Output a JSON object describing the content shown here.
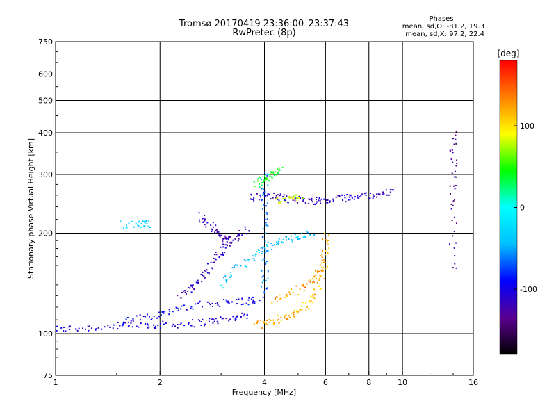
{
  "header": {
    "title": "Tromsø 20170419 23:36:00–23:37:43",
    "subtitle": "RwPretec (8p)"
  },
  "stats": {
    "title": "Phases",
    "o_line": "mean, sd,O: -81.2, 19.3",
    "x_line": "mean, sd,X:  97.2, 22.4"
  },
  "chart_data": {
    "type": "scatter",
    "xlabel": "Frequency [MHz]",
    "ylabel": "Stationary phase Virtual Height [km]",
    "x_scale": "log",
    "y_scale": "log",
    "xlim": [
      1,
      16
    ],
    "ylim": [
      75,
      750
    ],
    "x_ticks": [
      1,
      2,
      4,
      6,
      8,
      10,
      16
    ],
    "x_tick_labels": [
      "1",
      "2",
      "4",
      "6",
      "8",
      "10",
      "16"
    ],
    "x_grid": [
      2,
      4,
      6,
      8,
      10
    ],
    "y_ticks": [
      75,
      100,
      200,
      300,
      400,
      500,
      600,
      750
    ],
    "y_tick_labels": [
      "75",
      "100",
      "200",
      "300",
      "400",
      "500",
      "600",
      "750"
    ],
    "y_grid": [
      100,
      200,
      300,
      400,
      500,
      600
    ],
    "grid": true,
    "colorbar": {
      "label": "[deg]",
      "range": [
        -180,
        180
      ],
      "ticks": [
        100,
        0,
        -100
      ],
      "tick_labels": [
        "100",
        "0",
        "-100"
      ],
      "placement": "right"
    },
    "color_scale": [
      "#000000",
      "#5a0090",
      "#0000ff",
      "#00bfff",
      "#00ffff",
      "#00ff00",
      "#ffff00",
      "#ff8000",
      "#ff0000"
    ],
    "traces": [
      {
        "x": [
          1.0,
          1.2,
          1.5,
          1.8,
          2.0,
          2.4,
          2.8,
          3.2,
          3.6
        ],
        "y": [
          103,
          104,
          105,
          106,
          106,
          107,
          109,
          111,
          114
        ],
        "phase": -105
      },
      {
        "x": [
          1.5,
          1.8,
          2.1,
          2.5,
          3.0,
          3.5,
          3.9
        ],
        "y": [
          108,
          112,
          116,
          121,
          124,
          125,
          126
        ],
        "phase": -95
      },
      {
        "x": [
          3.8,
          4.2,
          4.6,
          5.0,
          5.4,
          5.8,
          6.0
        ],
        "y": [
          106,
          109,
          112,
          116,
          124,
          140,
          165
        ],
        "phase": 115
      },
      {
        "x": [
          4.2,
          4.8,
          5.4,
          5.8,
          6.0,
          6.0
        ],
        "y": [
          125,
          132,
          142,
          155,
          175,
          200
        ],
        "phase": 125
      },
      {
        "x": [
          2.3,
          2.5,
          2.7,
          2.9,
          3.1,
          3.3,
          3.6
        ],
        "y": [
          130,
          138,
          150,
          170,
          185,
          195,
          205
        ],
        "phase": -115
      },
      {
        "x": [
          3.0,
          3.3,
          3.7,
          4.1,
          4.5,
          5.0,
          5.5
        ],
        "y": [
          140,
          155,
          170,
          180,
          190,
          195,
          200
        ],
        "phase": -40
      },
      {
        "x": [
          3.6,
          4.0,
          4.5,
          5.0,
          5.5,
          6.0,
          6.8,
          7.5,
          8.5,
          9.5
        ],
        "y": [
          255,
          260,
          255,
          252,
          250,
          250,
          255,
          258,
          262,
          265
        ],
        "phase": -110
      },
      {
        "x": [
          4.4,
          4.8,
          5.2
        ],
        "y": [
          250,
          255,
          260
        ],
        "phase": 85
      },
      {
        "x": [
          3.8,
          4.0,
          4.2,
          4.5
        ],
        "y": [
          280,
          290,
          300,
          310
        ],
        "phase": 40
      },
      {
        "x": [
          2.6,
          2.8,
          3.0,
          3.2
        ],
        "y": [
          225,
          210,
          195,
          190
        ],
        "phase": -120
      },
      {
        "x": [
          1.55,
          1.75,
          1.9
        ],
        "y": [
          212,
          213,
          212
        ],
        "phase": -30
      },
      {
        "x": [
          4.0,
          4.0,
          4.0,
          4.0,
          4.0
        ],
        "y": [
          130,
          160,
          200,
          250,
          310
        ],
        "phase": -60
      },
      {
        "x": [
          14,
          14,
          14,
          14
        ],
        "y": [
          400,
          320,
          240,
          150
        ],
        "phase": -130
      }
    ]
  }
}
